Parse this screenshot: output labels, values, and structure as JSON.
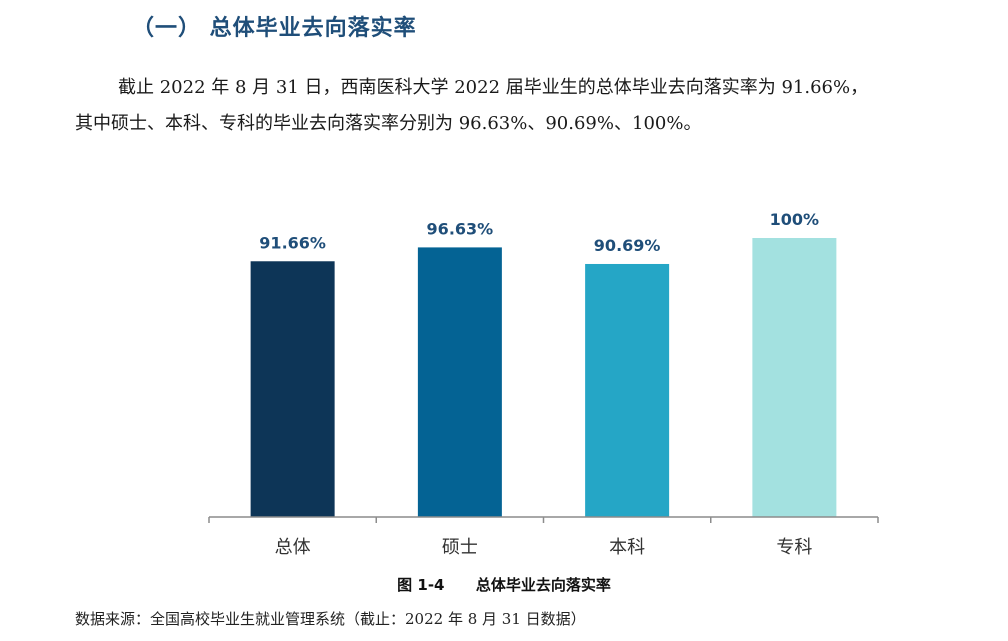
{
  "heading": "（一） 总体毕业去向落实率",
  "paragraph": {
    "line1": "截止 2022 年 8 月 31 日，西南医科大学 2022 届毕业生的总体毕业去向落实率为 91.66%，",
    "line2": "其中硕士、本科、专科的毕业去向落实率分别为 96.63%、90.69%、100%。"
  },
  "chart_data": {
    "type": "bar",
    "categories": [
      "总体",
      "硕士",
      "本科",
      "专科"
    ],
    "values": [
      91.66,
      96.63,
      90.69,
      100
    ],
    "data_labels": [
      "91.66%",
      "96.63%",
      "90.69%",
      "100%"
    ],
    "colors": [
      "#0d3557",
      "#046394",
      "#25a6c6",
      "#a3e1e0"
    ],
    "ylim": [
      0,
      100
    ],
    "grid": false,
    "legend": "none",
    "title": "",
    "xlabel": "",
    "ylabel": ""
  },
  "caption": "图 1-4      总体毕业去向落实率",
  "source": "数据来源：全国高校毕业生就业管理系统（截止：2022 年 8 月 31 日数据）"
}
